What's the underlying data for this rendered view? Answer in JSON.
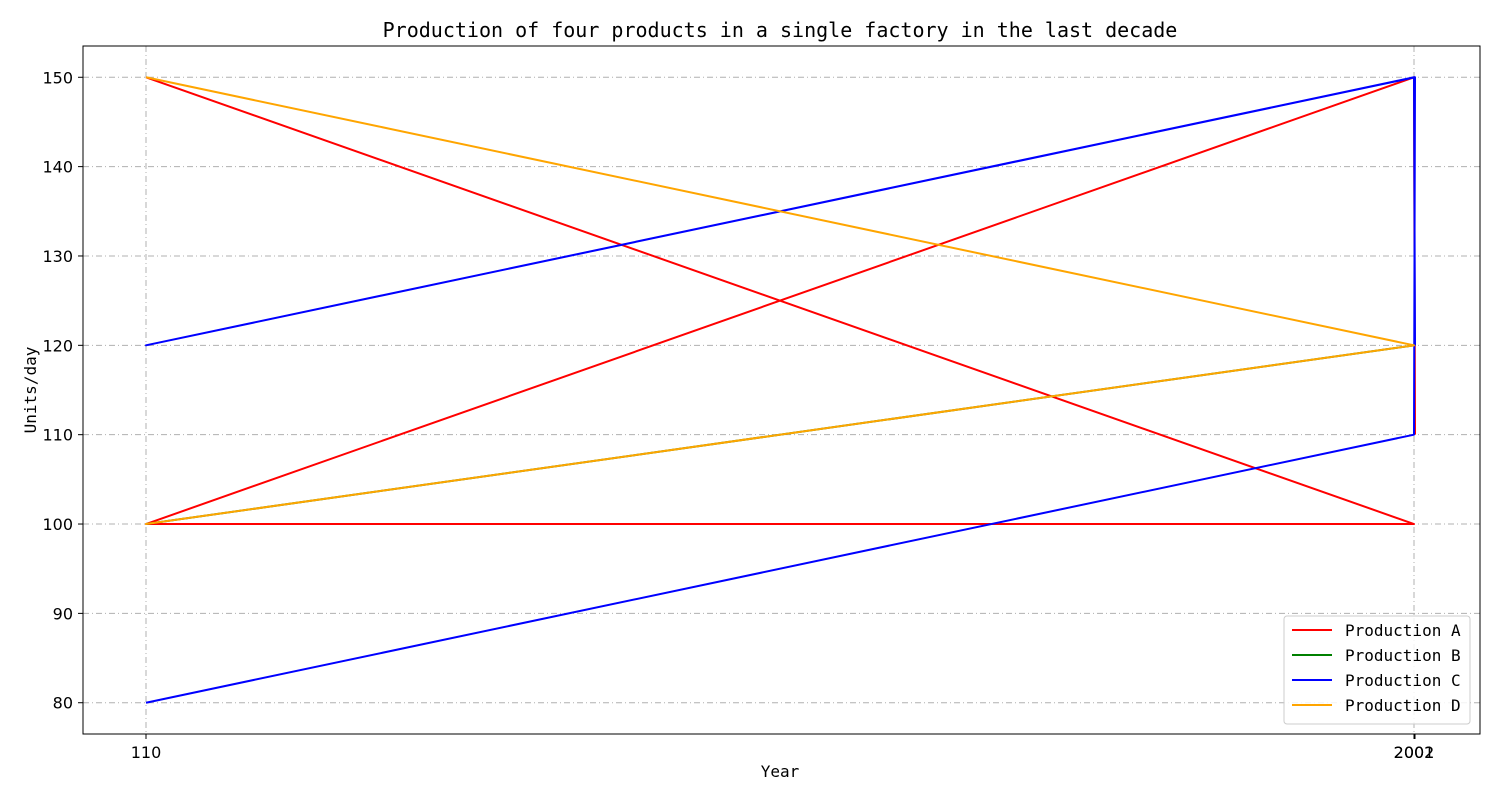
{
  "chart_data": {
    "type": "line",
    "title": "Production of four products in a single factory in the last decade",
    "xlabel": "Year",
    "ylabel": "Units/day",
    "ylim": [
      76.5,
      153.5
    ],
    "yticks": [
      80,
      90,
      100,
      110,
      120,
      130,
      140,
      150
    ],
    "x_categories": [
      "110",
      "2001",
      "2002"
    ],
    "x_tick_labels_left": [
      "110"
    ],
    "x_tick_labels_right": [
      "2001",
      "2002"
    ],
    "grid": true,
    "legend_position": "lower-right",
    "series": [
      {
        "name": "Production A",
        "color": "#ff0000",
        "points": [
          [
            "110",
            150
          ],
          [
            "2001",
            100
          ],
          [
            "110",
            100
          ],
          [
            "2001",
            150
          ],
          [
            "2002",
            110
          ]
        ]
      },
      {
        "name": "Production B",
        "color": "#008000",
        "points": [
          [
            "110",
            100
          ],
          [
            "2001",
            120
          ]
        ]
      },
      {
        "name": "Production C",
        "color": "#0000ff",
        "points": [
          [
            "110",
            80
          ],
          [
            "2001",
            110
          ],
          [
            "2002",
            150
          ],
          [
            "110",
            120
          ],
          [
            "2001",
            150
          ],
          [
            "2002",
            120
          ]
        ]
      },
      {
        "name": "Production D",
        "color": "#ffa500",
        "points": [
          [
            "110",
            150
          ],
          [
            "2001",
            120
          ],
          [
            "110",
            100
          ],
          [
            "2001",
            120
          ]
        ]
      }
    ]
  }
}
